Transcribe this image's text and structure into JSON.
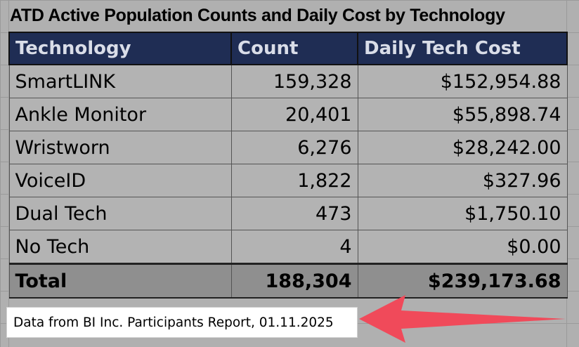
{
  "title": "ATD Active Population Counts and Daily Cost by Technology",
  "table": {
    "headers": [
      "Technology",
      "Count",
      "Daily Tech Cost"
    ],
    "rows": [
      {
        "technology": "SmartLINK",
        "count": "159,328",
        "cost": "$152,954.88"
      },
      {
        "technology": "Ankle Monitor",
        "count": "20,401",
        "cost": "$55,898.74"
      },
      {
        "technology": "Wristworn",
        "count": "6,276",
        "cost": "$28,242.00"
      },
      {
        "technology": "VoiceID",
        "count": "1,822",
        "cost": "$327.96"
      },
      {
        "technology": "Dual Tech",
        "count": "473",
        "cost": "$1,750.10"
      },
      {
        "technology": "No Tech",
        "count": "4",
        "cost": "$0.00"
      }
    ],
    "total": {
      "label": "Total",
      "count": "188,304",
      "cost": "$239,173.68"
    }
  },
  "note": "Data from BI Inc. Participants Report, 01.11.2025",
  "colors": {
    "header_bg": "#1f2d54",
    "header_text": "#d9dde8",
    "arrow": "#f04a5a",
    "sheet_bg": "#b0b0b0",
    "total_bg": "#8f8f8f"
  }
}
